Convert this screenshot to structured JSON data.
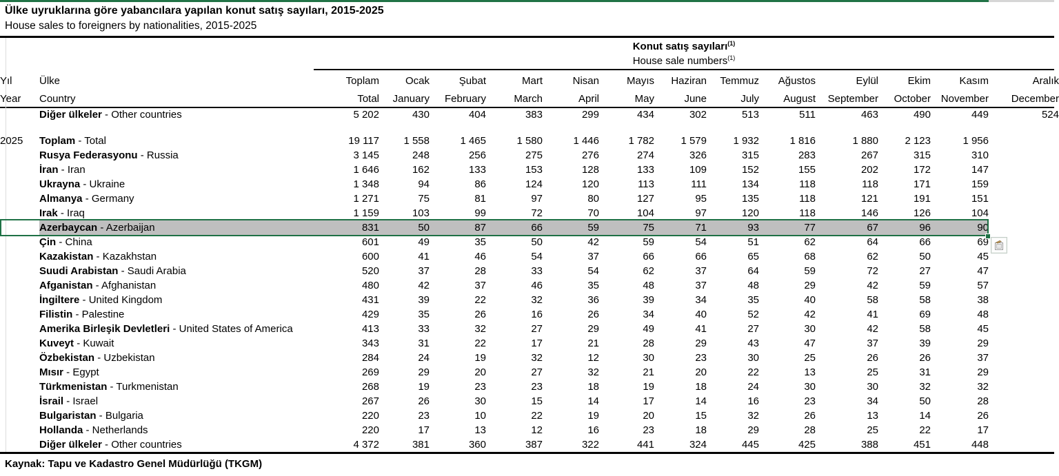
{
  "page": {
    "title_tr": "Ülke uyruklarına göre yabancılara yapılan konut satış sayıları, 2015-2025",
    "title_en": "House sales to foreigners by nationalities, 2015-2025",
    "source": "Kaynak: Tapu ve Kadastro Genel Müdürlüğü (TKGM)"
  },
  "colors": {
    "accent_bar_green": "#217346",
    "selection_green": "#1E7145",
    "highlight_gray": "#BFBFBF"
  },
  "icons": {
    "paste_options": "paste-options-clipboard-icon",
    "fill_handle": "selection-fill-handle"
  },
  "table": {
    "group_header": {
      "tr": "Konut satış sayıları",
      "en": "House sale numbers",
      "marker": "(1)"
    },
    "sep": " - ",
    "year_header": {
      "tr": "Yıl",
      "en": "Year"
    },
    "country_header": {
      "tr": "Ülke",
      "en": "Country"
    },
    "months": [
      {
        "tr": "Toplam",
        "en": "Total"
      },
      {
        "tr": "Ocak",
        "en": "January"
      },
      {
        "tr": "Şubat",
        "en": "February"
      },
      {
        "tr": "Mart",
        "en": "March"
      },
      {
        "tr": "Nisan",
        "en": "April"
      },
      {
        "tr": "Mayıs",
        "en": "May"
      },
      {
        "tr": "Haziran",
        "en": "June"
      },
      {
        "tr": "Temmuz",
        "en": "July"
      },
      {
        "tr": "Ağustos",
        "en": "August"
      },
      {
        "tr": "Eylül",
        "en": "September"
      },
      {
        "tr": "Ekim",
        "en": "October"
      },
      {
        "tr": "Kasım",
        "en": "November"
      },
      {
        "tr": "Aralık",
        "en": "December"
      }
    ],
    "rows": [
      {
        "year": "",
        "tr": "Diğer ülkeler",
        "en": "Other countries",
        "v": [
          "5 202",
          "430",
          "404",
          "383",
          "299",
          "434",
          "302",
          "513",
          "511",
          "463",
          "490",
          "449",
          "524"
        ]
      },
      {
        "spacer": true
      },
      {
        "year": "2025",
        "tr": "Toplam",
        "en": "Total",
        "bold": true,
        "v": [
          "19 117",
          "1 558",
          "1 465",
          "1 580",
          "1 446",
          "1 782",
          "1 579",
          "1 932",
          "1 816",
          "1 880",
          "2 123",
          "1 956",
          ""
        ]
      },
      {
        "year": "",
        "tr": "Rusya Federasyonu",
        "en": "Russia",
        "v": [
          "3 145",
          "248",
          "256",
          "275",
          "276",
          "274",
          "326",
          "315",
          "283",
          "267",
          "315",
          "310",
          ""
        ]
      },
      {
        "year": "",
        "tr": "İran",
        "en": "Iran",
        "v": [
          "1 646",
          "162",
          "133",
          "153",
          "128",
          "133",
          "109",
          "152",
          "155",
          "202",
          "172",
          "147",
          ""
        ]
      },
      {
        "year": "",
        "tr": "Ukrayna",
        "en": "Ukraine",
        "v": [
          "1 348",
          "94",
          "86",
          "124",
          "120",
          "113",
          "111",
          "134",
          "118",
          "118",
          "171",
          "159",
          ""
        ]
      },
      {
        "year": "",
        "tr": "Almanya",
        "en": "Germany",
        "v": [
          "1 271",
          "75",
          "81",
          "97",
          "80",
          "127",
          "95",
          "135",
          "118",
          "121",
          "191",
          "151",
          ""
        ]
      },
      {
        "year": "",
        "tr": "Irak",
        "en": "Iraq",
        "v": [
          "1 159",
          "103",
          "99",
          "72",
          "70",
          "104",
          "97",
          "120",
          "118",
          "146",
          "126",
          "104",
          ""
        ]
      },
      {
        "year": "",
        "tr": "Azerbaycan",
        "en": "Azerbaijan",
        "highlight": true,
        "v": [
          "831",
          "50",
          "87",
          "66",
          "59",
          "75",
          "71",
          "93",
          "77",
          "67",
          "96",
          "90",
          ""
        ]
      },
      {
        "year": "",
        "tr": "Çin",
        "en": "China",
        "v": [
          "601",
          "49",
          "35",
          "50",
          "42",
          "59",
          "54",
          "51",
          "62",
          "64",
          "66",
          "69",
          ""
        ]
      },
      {
        "year": "",
        "tr": "Kazakistan",
        "en": "Kazakhstan",
        "v": [
          "600",
          "41",
          "46",
          "54",
          "37",
          "66",
          "66",
          "65",
          "68",
          "62",
          "50",
          "45",
          ""
        ]
      },
      {
        "year": "",
        "tr": "Suudi Arabistan",
        "en": "Saudi Arabia",
        "v": [
          "520",
          "37",
          "28",
          "33",
          "54",
          "62",
          "37",
          "64",
          "59",
          "72",
          "27",
          "47",
          ""
        ]
      },
      {
        "year": "",
        "tr": "Afganistan",
        "en": "Afghanistan",
        "v": [
          "480",
          "42",
          "37",
          "46",
          "35",
          "48",
          "37",
          "48",
          "29",
          "42",
          "59",
          "57",
          ""
        ]
      },
      {
        "year": "",
        "tr": "İngiltere",
        "en": "United Kingdom",
        "v": [
          "431",
          "39",
          "22",
          "32",
          "36",
          "39",
          "34",
          "35",
          "40",
          "58",
          "58",
          "38",
          ""
        ]
      },
      {
        "year": "",
        "tr": "Filistin",
        "en": "Palestine",
        "v": [
          "429",
          "35",
          "26",
          "16",
          "26",
          "34",
          "40",
          "52",
          "42",
          "41",
          "69",
          "48",
          ""
        ]
      },
      {
        "year": "",
        "tr": "Amerika Birleşik Devletleri",
        "en": "United States of America",
        "v": [
          "413",
          "33",
          "32",
          "27",
          "29",
          "49",
          "41",
          "27",
          "30",
          "42",
          "58",
          "45",
          ""
        ]
      },
      {
        "year": "",
        "tr": "Kuveyt",
        "en": "Kuwait",
        "v": [
          "343",
          "31",
          "22",
          "17",
          "21",
          "28",
          "29",
          "43",
          "47",
          "37",
          "39",
          "29",
          ""
        ]
      },
      {
        "year": "",
        "tr": "Özbekistan",
        "en": "Uzbekistan",
        "v": [
          "284",
          "24",
          "19",
          "32",
          "12",
          "30",
          "23",
          "30",
          "25",
          "26",
          "26",
          "37",
          ""
        ]
      },
      {
        "year": "",
        "tr": "Mısır",
        "en": "Egypt",
        "v": [
          "269",
          "29",
          "20",
          "27",
          "32",
          "21",
          "20",
          "22",
          "13",
          "25",
          "31",
          "29",
          ""
        ]
      },
      {
        "year": "",
        "tr": "Türkmenistan",
        "en": "Turkmenistan",
        "v": [
          "268",
          "19",
          "23",
          "23",
          "18",
          "19",
          "18",
          "24",
          "30",
          "30",
          "32",
          "32",
          ""
        ]
      },
      {
        "year": "",
        "tr": "İsrail",
        "en": "Israel",
        "v": [
          "267",
          "26",
          "30",
          "15",
          "14",
          "17",
          "14",
          "16",
          "23",
          "34",
          "50",
          "28",
          ""
        ]
      },
      {
        "year": "",
        "tr": "Bulgaristan",
        "en": "Bulgaria",
        "v": [
          "220",
          "23",
          "10",
          "22",
          "19",
          "20",
          "15",
          "32",
          "26",
          "13",
          "14",
          "26",
          ""
        ]
      },
      {
        "year": "",
        "tr": "Hollanda",
        "en": "Netherlands",
        "v": [
          "220",
          "17",
          "13",
          "12",
          "16",
          "23",
          "18",
          "29",
          "28",
          "25",
          "22",
          "17",
          ""
        ]
      },
      {
        "year": "",
        "tr": "Diğer ülkeler",
        "en": "Other countries",
        "v": [
          "4 372",
          "381",
          "360",
          "387",
          "322",
          "441",
          "324",
          "445",
          "425",
          "388",
          "451",
          "448",
          ""
        ]
      }
    ]
  }
}
